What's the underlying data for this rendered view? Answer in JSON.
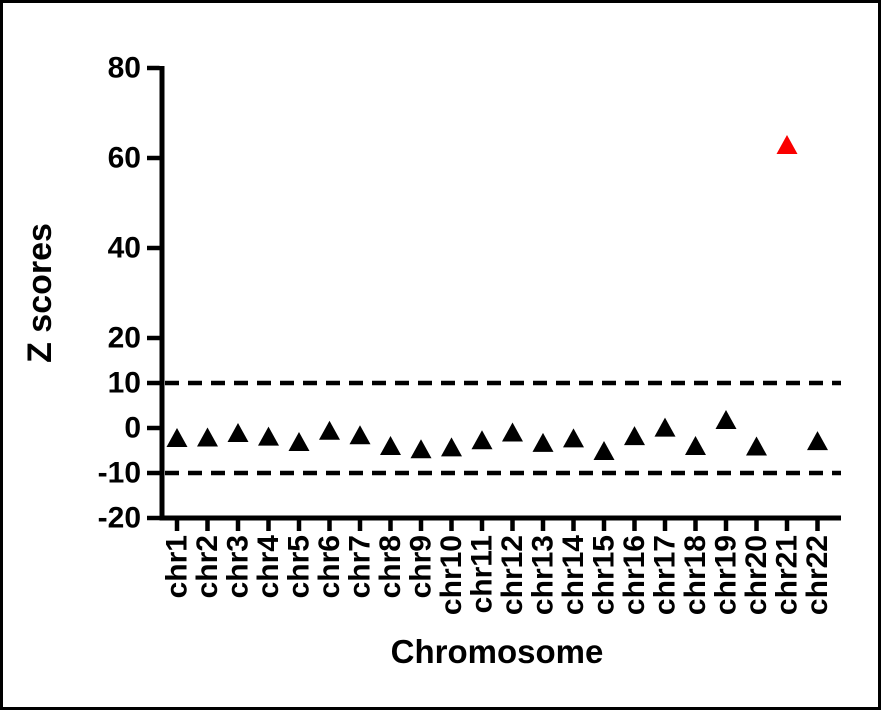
{
  "figure": {
    "background": "#ffffff",
    "frame_color": "#000000"
  },
  "chart_data": {
    "type": "scatter",
    "title": "",
    "xlabel": "Chromosome",
    "ylabel": "Z scores",
    "marker": "triangle",
    "marker_color": "#000000",
    "highlight": {
      "category": "chr21",
      "color": "#fa0000"
    },
    "categories": [
      "chr1",
      "chr2",
      "chr3",
      "chr4",
      "chr5",
      "chr6",
      "chr7",
      "chr8",
      "chr9",
      "chr10",
      "chr11",
      "chr12",
      "chr13",
      "chr14",
      "chr15",
      "chr16",
      "chr17",
      "chr18",
      "chr19",
      "chr20",
      "chr21",
      "chr22"
    ],
    "series": [
      {
        "name": "Z scores",
        "values": [
          -2.1,
          -2.0,
          -1.0,
          -1.8,
          -3.0,
          -0.5,
          -1.5,
          -3.9,
          -4.6,
          -4.2,
          -2.6,
          -0.9,
          -3.2,
          -2.2,
          -5.0,
          -1.7,
          0.2,
          -3.9,
          1.9,
          -4.0,
          63.0,
          -2.8
        ]
      }
    ],
    "ylim": [
      -20,
      80
    ],
    "yticks": [
      80,
      60,
      40,
      20,
      10,
      0,
      -10,
      -20
    ],
    "threshold_lines": [
      {
        "value": 10,
        "style": "dashed"
      },
      {
        "value": -10,
        "style": "dashed"
      }
    ],
    "grid": false,
    "legend": "none",
    "axis_color": "#000000"
  }
}
